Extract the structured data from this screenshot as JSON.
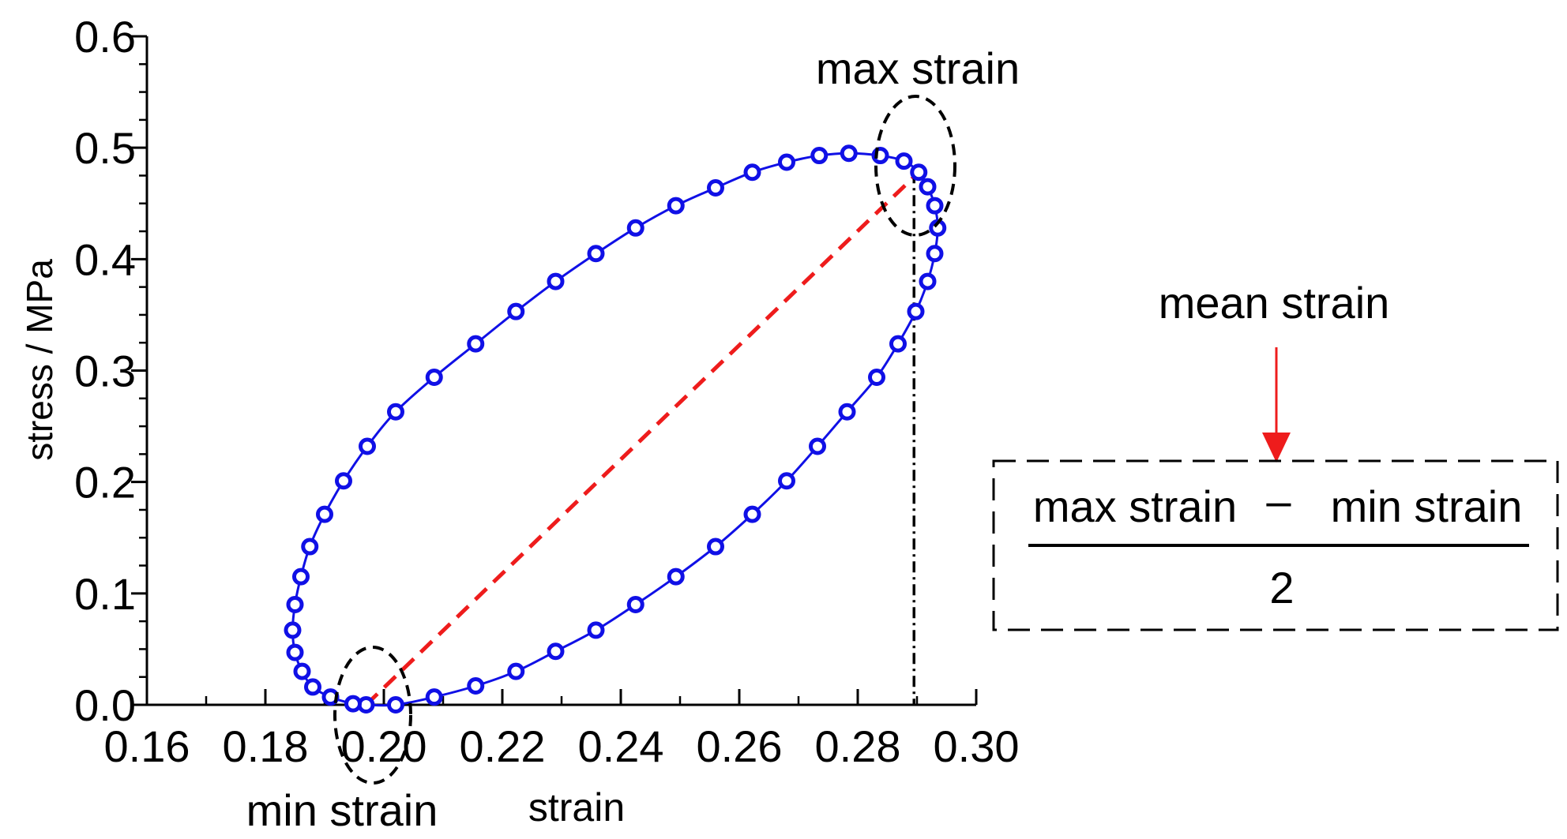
{
  "chart_data": {
    "type": "scatter",
    "xlabel": "strain",
    "ylabel": "stress / MPa",
    "xlim": [
      0.16,
      0.3
    ],
    "ylim": [
      0.0,
      0.6
    ],
    "x_ticks": [
      "0.16",
      "0.18",
      "0.20",
      "0.22",
      "0.24",
      "0.26",
      "0.28",
      "0.30"
    ],
    "y_ticks": [
      "0.0",
      "0.1",
      "0.2",
      "0.3",
      "0.4",
      "0.5",
      "0.6"
    ],
    "grid": false,
    "series": [
      {
        "color": "#1010e6",
        "marker": "open-circle",
        "line": "solid",
        "points": [
          [
            0.197,
            0.0
          ],
          [
            0.202,
            0.0
          ],
          [
            0.2085,
            0.007
          ],
          [
            0.2155,
            0.017
          ],
          [
            0.2223,
            0.03
          ],
          [
            0.229,
            0.048
          ],
          [
            0.2358,
            0.067
          ],
          [
            0.2425,
            0.09
          ],
          [
            0.2493,
            0.115
          ],
          [
            0.256,
            0.142
          ],
          [
            0.2622,
            0.171
          ],
          [
            0.268,
            0.201
          ],
          [
            0.2732,
            0.232
          ],
          [
            0.2782,
            0.263
          ],
          [
            0.2832,
            0.294
          ],
          [
            0.2868,
            0.324
          ],
          [
            0.2898,
            0.353
          ],
          [
            0.2918,
            0.38
          ],
          [
            0.293,
            0.405
          ],
          [
            0.2935,
            0.428
          ],
          [
            0.293,
            0.448
          ],
          [
            0.2918,
            0.465
          ],
          [
            0.2903,
            0.478
          ],
          [
            0.2878,
            0.488
          ],
          [
            0.2838,
            0.493
          ],
          [
            0.2785,
            0.495
          ],
          [
            0.2735,
            0.493
          ],
          [
            0.268,
            0.487
          ],
          [
            0.2622,
            0.478
          ],
          [
            0.256,
            0.464
          ],
          [
            0.2493,
            0.448
          ],
          [
            0.2425,
            0.428
          ],
          [
            0.2358,
            0.405
          ],
          [
            0.229,
            0.38
          ],
          [
            0.2223,
            0.353
          ],
          [
            0.2155,
            0.324
          ],
          [
            0.2085,
            0.294
          ],
          [
            0.202,
            0.263
          ],
          [
            0.1972,
            0.232
          ],
          [
            0.1932,
            0.201
          ],
          [
            0.19,
            0.171
          ],
          [
            0.1875,
            0.142
          ],
          [
            0.186,
            0.115
          ],
          [
            0.185,
            0.09
          ],
          [
            0.1846,
            0.067
          ],
          [
            0.185,
            0.047
          ],
          [
            0.1862,
            0.03
          ],
          [
            0.188,
            0.016
          ],
          [
            0.191,
            0.007
          ],
          [
            0.1948,
            0.001
          ]
        ]
      }
    ],
    "mean_line": {
      "color": "#ee1c1c",
      "from": [
        0.197,
        0.0
      ],
      "to": [
        0.2903,
        0.478
      ]
    },
    "max_strain_guide": {
      "x": 0.2895
    },
    "annotations": {
      "max_label": "max strain",
      "min_label": "min strain",
      "mean_label": "mean strain",
      "formula_numerator_left": "max strain",
      "formula_operator": "–",
      "formula_numerator_right": "min strain",
      "formula_denominator": "2",
      "arrow_color": "#ee1c1c"
    }
  }
}
